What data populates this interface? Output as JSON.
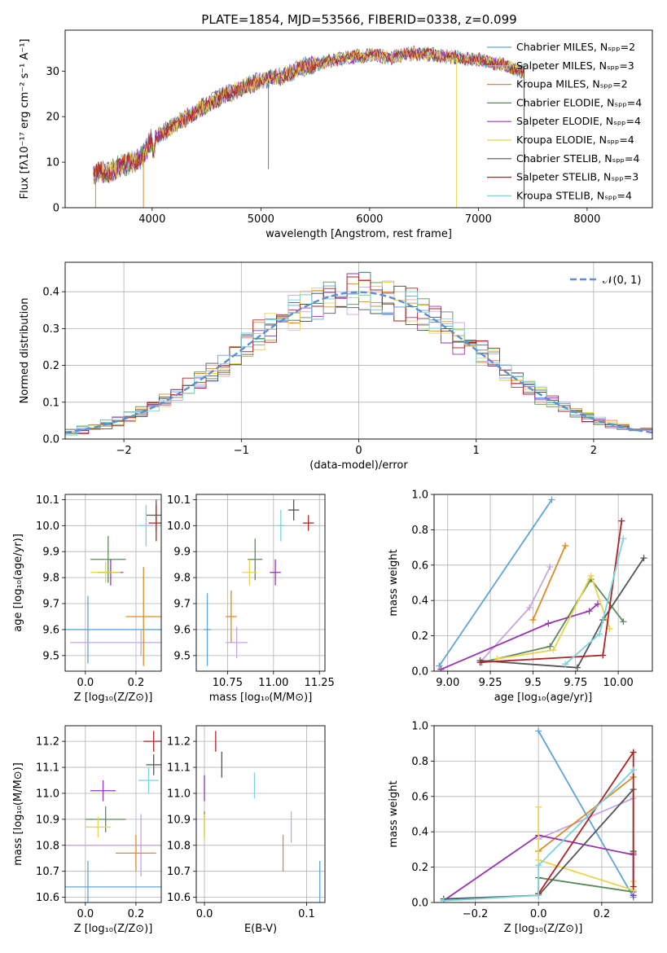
{
  "title": "PLATE=1854, MJD=53566, FIBERID=0338, z=0.099",
  "colors": [
    "#5da5da",
    "#c5a6e0",
    "#d98c2a",
    "#5a8a5a",
    "#9a32b4",
    "#e8d44d",
    "#555555",
    "#b22222",
    "#7ad3dd"
  ],
  "legend": [
    {
      "text": "Chabrier MILES, Nₛₚₚ=2",
      "color": "#5da5da"
    },
    {
      "text": "Salpeter MILES, Nₛₚₚ=3",
      "color": "#c5a6e0"
    },
    {
      "text": "Kroupa MILES, Nₛₚₚ=2",
      "color": "#d98c2a"
    },
    {
      "text": "Chabrier ELODIE, Nₛₚₚ=4",
      "color": "#5a8a5a"
    },
    {
      "text": "Salpeter ELODIE, Nₛₚₚ=4",
      "color": "#9a32b4"
    },
    {
      "text": "Kroupa ELODIE, Nₛₚₚ=4",
      "color": "#e8d44d"
    },
    {
      "text": "Chabrier STELIB, Nₛₚₚ=4",
      "color": "#555555"
    },
    {
      "text": "Salpeter STELIB, Nₛₚₚ=3",
      "color": "#b22222"
    },
    {
      "text": "Kroupa STELIB, Nₛₚₚ=4",
      "color": "#7ad3dd"
    }
  ],
  "chart_data": [
    {
      "type": "line",
      "xlabel": "wavelength [Angstrom, rest frame]",
      "ylabel": "Flux [fλ10⁻¹⁷ erg cm⁻² s⁻¹ A⁻¹]",
      "xlim": [
        3200,
        8600
      ],
      "ylim": [
        0,
        39
      ],
      "xticks": [
        4000,
        5000,
        6000,
        7000,
        8000
      ],
      "yticks": [
        0,
        10,
        20,
        30
      ],
      "continuum_x": [
        3460,
        3600,
        3800,
        3900,
        4000,
        4200,
        4400,
        4600,
        4800,
        5000,
        5200,
        5400,
        5600,
        5800,
        6000,
        6200,
        6400,
        6600,
        6800,
        7000,
        7200,
        7400
      ],
      "continuum_y": [
        7.5,
        8,
        10,
        11,
        15,
        18,
        21,
        24,
        26,
        28,
        29,
        31,
        32,
        33,
        33.5,
        33,
        34,
        33.5,
        33,
        32.5,
        31.5,
        30
      ]
    },
    {
      "type": "step",
      "xlabel": "(data-model)/error",
      "ylabel": "Normed distribution",
      "xlim": [
        -2.5,
        2.5
      ],
      "ylim": [
        0,
        0.48
      ],
      "xticks": [
        -2,
        -1,
        0,
        1,
        2
      ],
      "yticks": [
        0.0,
        0.1,
        0.2,
        0.3,
        0.4
      ],
      "legend": "𝒩(0, 1)",
      "legend_position": "top-right",
      "bin_width": 0.1
    },
    {
      "type": "scatter",
      "xlabel": "Z [log₁₀(Z/Z⊙)]",
      "ylabel": "age  [log₁₀(age/yr)]",
      "xlim": [
        -0.08,
        0.3
      ],
      "ylim": [
        9.44,
        10.12
      ],
      "xticks": [
        0.0,
        0.2
      ],
      "yticks": [
        9.5,
        9.6,
        9.7,
        9.8,
        9.9,
        10.0,
        10.1
      ],
      "points": [
        {
          "c": 0,
          "x": 0.01,
          "y": 9.6,
          "xerr": 0.31,
          "yerr": 0.13
        },
        {
          "c": 1,
          "x": 0.22,
          "y": 9.55,
          "xerr": 0.28,
          "yerr": 0.05
        },
        {
          "c": 2,
          "x": 0.23,
          "y": 9.65,
          "xerr": 0.07,
          "yerr": 0.19
        },
        {
          "c": 3,
          "x": 0.09,
          "y": 9.87,
          "xerr": 0.07,
          "yerr": 0.09
        },
        {
          "c": 4,
          "x": 0.1,
          "y": 9.82,
          "xerr": 0.05,
          "yerr": 0.05
        },
        {
          "c": 5,
          "x": 0.08,
          "y": 9.82,
          "xerr": 0.06,
          "yerr": 0.04
        },
        {
          "c": 6,
          "x": 0.28,
          "y": 10.04,
          "xerr": 0.04,
          "yerr": 0.06
        },
        {
          "c": 7,
          "x": 0.28,
          "y": 10.01,
          "xerr": 0.03,
          "yerr": 0.07
        },
        {
          "c": 8,
          "x": 0.24,
          "y": 10.0,
          "xerr": 0.03,
          "yerr": 0.08
        }
      ]
    },
    {
      "type": "scatter",
      "xlabel": "mass [log₁₀(M/M⊙)]",
      "ylabel": "",
      "xlim": [
        10.58,
        11.28
      ],
      "ylim": [
        9.44,
        10.12
      ],
      "xticks": [
        10.75,
        11.0,
        11.25
      ],
      "yticks": [
        9.5,
        9.6,
        9.7,
        9.8,
        9.9,
        10.0,
        10.1
      ],
      "points": [
        {
          "c": 0,
          "x": 10.64,
          "y": 9.6,
          "xerr": 0.02,
          "yerr": 0.14
        },
        {
          "c": 1,
          "x": 10.8,
          "y": 9.55,
          "xerr": 0.06,
          "yerr": 0.06
        },
        {
          "c": 2,
          "x": 10.77,
          "y": 9.65,
          "xerr": 0.03,
          "yerr": 0.1
        },
        {
          "c": 3,
          "x": 10.9,
          "y": 9.87,
          "xerr": 0.04,
          "yerr": 0.08
        },
        {
          "c": 4,
          "x": 11.01,
          "y": 9.82,
          "xerr": 0.03,
          "yerr": 0.05
        },
        {
          "c": 5,
          "x": 10.87,
          "y": 9.82,
          "xerr": 0.04,
          "yerr": 0.05
        },
        {
          "c": 6,
          "x": 11.11,
          "y": 10.06,
          "xerr": 0.03,
          "yerr": 0.04
        },
        {
          "c": 7,
          "x": 11.19,
          "y": 10.01,
          "xerr": 0.03,
          "yerr": 0.03
        },
        {
          "c": 8,
          "x": 11.04,
          "y": 10.0,
          "xerr": 0.02,
          "yerr": 0.06
        }
      ]
    },
    {
      "type": "line",
      "xlabel": "age  [log₁₀(age/yr)]",
      "ylabel": "mass weight",
      "xlim": [
        8.92,
        10.2
      ],
      "ylim": [
        0,
        1.0
      ],
      "xticks": [
        9.0,
        9.25,
        9.5,
        9.75,
        10.0
      ],
      "yticks": [
        0.0,
        0.2,
        0.4,
        0.6,
        0.8,
        1.0
      ],
      "series": [
        {
          "c": 0,
          "x": [
            8.95,
            9.61
          ],
          "y": [
            0.03,
            0.97
          ]
        },
        {
          "c": 1,
          "x": [
            9.19,
            9.48,
            9.6
          ],
          "y": [
            0.05,
            0.36,
            0.59
          ]
        },
        {
          "c": 2,
          "x": [
            9.5,
            9.69
          ],
          "y": [
            0.29,
            0.71
          ]
        },
        {
          "c": 3,
          "x": [
            9.2,
            9.6,
            9.84,
            10.03
          ],
          "y": [
            0.05,
            0.14,
            0.52,
            0.28
          ]
        },
        {
          "c": 4,
          "x": [
            8.96,
            9.59,
            9.83,
            9.88
          ],
          "y": [
            0.01,
            0.27,
            0.34,
            0.38
          ]
        },
        {
          "c": 5,
          "x": [
            9.29,
            9.62,
            9.84,
            9.95
          ],
          "y": [
            0.07,
            0.12,
            0.54,
            0.24
          ]
        },
        {
          "c": 6,
          "x": [
            9.19,
            9.76,
            9.91,
            10.15
          ],
          "y": [
            0.06,
            0.02,
            0.29,
            0.64
          ]
        },
        {
          "c": 7,
          "x": [
            9.19,
            9.91,
            10.02
          ],
          "y": [
            0.05,
            0.09,
            0.85
          ]
        },
        {
          "c": 8,
          "x": [
            9.69,
            9.89,
            10.03
          ],
          "y": [
            0.04,
            0.21,
            0.75
          ]
        }
      ]
    },
    {
      "type": "scatter",
      "xlabel": "Z [log₁₀(Z/Z⊙)]",
      "ylabel": "mass [log₁₀(M/M⊙)]",
      "xlim": [
        -0.08,
        0.3
      ],
      "ylim": [
        10.58,
        11.26
      ],
      "xticks": [
        0.0,
        0.2
      ],
      "yticks": [
        10.6,
        10.7,
        10.8,
        10.9,
        11.0,
        11.1,
        11.2
      ],
      "points": [
        {
          "c": 0,
          "x": 0.01,
          "y": 10.64,
          "xerr": 0.31,
          "yerr": 0.1
        },
        {
          "c": 1,
          "x": 0.22,
          "y": 10.8,
          "xerr": 0.3,
          "yerr": 0.12
        },
        {
          "c": 2,
          "x": 0.2,
          "y": 10.77,
          "xerr": 0.08,
          "yerr": 0.07
        },
        {
          "c": 3,
          "x": 0.08,
          "y": 10.9,
          "xerr": 0.08,
          "yerr": 0.05
        },
        {
          "c": 4,
          "x": 0.07,
          "y": 11.01,
          "xerr": 0.05,
          "yerr": 0.04
        },
        {
          "c": 5,
          "x": 0.05,
          "y": 10.87,
          "xerr": 0.05,
          "yerr": 0.04
        },
        {
          "c": 6,
          "x": 0.27,
          "y": 11.11,
          "xerr": 0.03,
          "yerr": 0.04
        },
        {
          "c": 7,
          "x": 0.27,
          "y": 11.2,
          "xerr": 0.04,
          "yerr": 0.04
        },
        {
          "c": 8,
          "x": 0.25,
          "y": 11.05,
          "xerr": 0.04,
          "yerr": 0.05
        }
      ]
    },
    {
      "type": "scatter",
      "xlabel": "E(B-V)",
      "ylabel": "",
      "xlim": [
        -0.008,
        0.118
      ],
      "ylim": [
        10.58,
        11.26
      ],
      "xticks": [
        0.0,
        0.1
      ],
      "yticks": [
        10.6,
        10.7,
        10.8,
        10.9,
        11.0,
        11.1,
        11.2
      ],
      "points": [
        {
          "c": 0,
          "x": 0.113,
          "y": 10.64,
          "yerr": 0.1
        },
        {
          "c": 1,
          "x": 0.085,
          "y": 10.87,
          "yerr": 0.06
        },
        {
          "c": 2,
          "x": 0.077,
          "y": 10.77,
          "yerr": 0.07
        },
        {
          "c": 3,
          "x": 0.0,
          "y": 10.88,
          "yerr": 0.05
        },
        {
          "c": 4,
          "x": 0.0,
          "y": 11.02,
          "yerr": 0.05
        },
        {
          "c": 5,
          "x": 0.0,
          "y": 10.87,
          "yerr": 0.05
        },
        {
          "c": 6,
          "x": 0.017,
          "y": 11.11,
          "yerr": 0.05
        },
        {
          "c": 7,
          "x": 0.011,
          "y": 11.2,
          "yerr": 0.04
        },
        {
          "c": 8,
          "x": 0.049,
          "y": 11.03,
          "yerr": 0.05
        }
      ]
    },
    {
      "type": "line",
      "xlabel": "Z [log₁₀(Z/Z⊙)]",
      "ylabel": "mass weight",
      "xlim": [
        -0.33,
        0.36
      ],
      "ylim": [
        0,
        1.0
      ],
      "xticks": [
        -0.2,
        0.0,
        0.2
      ],
      "yticks": [
        0.0,
        0.2,
        0.4,
        0.6,
        0.8,
        1.0
      ],
      "series": [
        {
          "c": 0,
          "x": [
            0.0,
            0.3
          ],
          "y": [
            0.97,
            0.03
          ]
        },
        {
          "c": 1,
          "x": [
            0.0,
            0.3
          ],
          "y": [
            0.36,
            0.59
          ]
        },
        {
          "c": 2,
          "x": [
            0.0,
            0.3
          ],
          "y": [
            0.29,
            0.71
          ]
        },
        {
          "c": 3,
          "x": [
            0.0,
            0.0,
            0.3,
            0.3
          ],
          "y": [
            0.05,
            0.14,
            0.06,
            0.28
          ]
        },
        {
          "c": 4,
          "x": [
            -0.3,
            0.0,
            0.3,
            0.3
          ],
          "y": [
            0.01,
            0.38,
            0.27,
            0.04
          ]
        },
        {
          "c": 5,
          "x": [
            0.0,
            0.0,
            0.3,
            0.3
          ],
          "y": [
            0.54,
            0.24,
            0.07,
            0.12
          ]
        },
        {
          "c": 6,
          "x": [
            -0.3,
            0.0,
            0.3,
            0.3
          ],
          "y": [
            0.02,
            0.04,
            0.64,
            0.29
          ]
        },
        {
          "c": 7,
          "x": [
            0.0,
            0.3,
            0.3
          ],
          "y": [
            0.05,
            0.85,
            0.09
          ]
        },
        {
          "c": 8,
          "x": [
            -0.3,
            0.0,
            0.0,
            0.3
          ],
          "y": [
            0.01,
            0.04,
            0.21,
            0.75
          ]
        }
      ]
    }
  ]
}
